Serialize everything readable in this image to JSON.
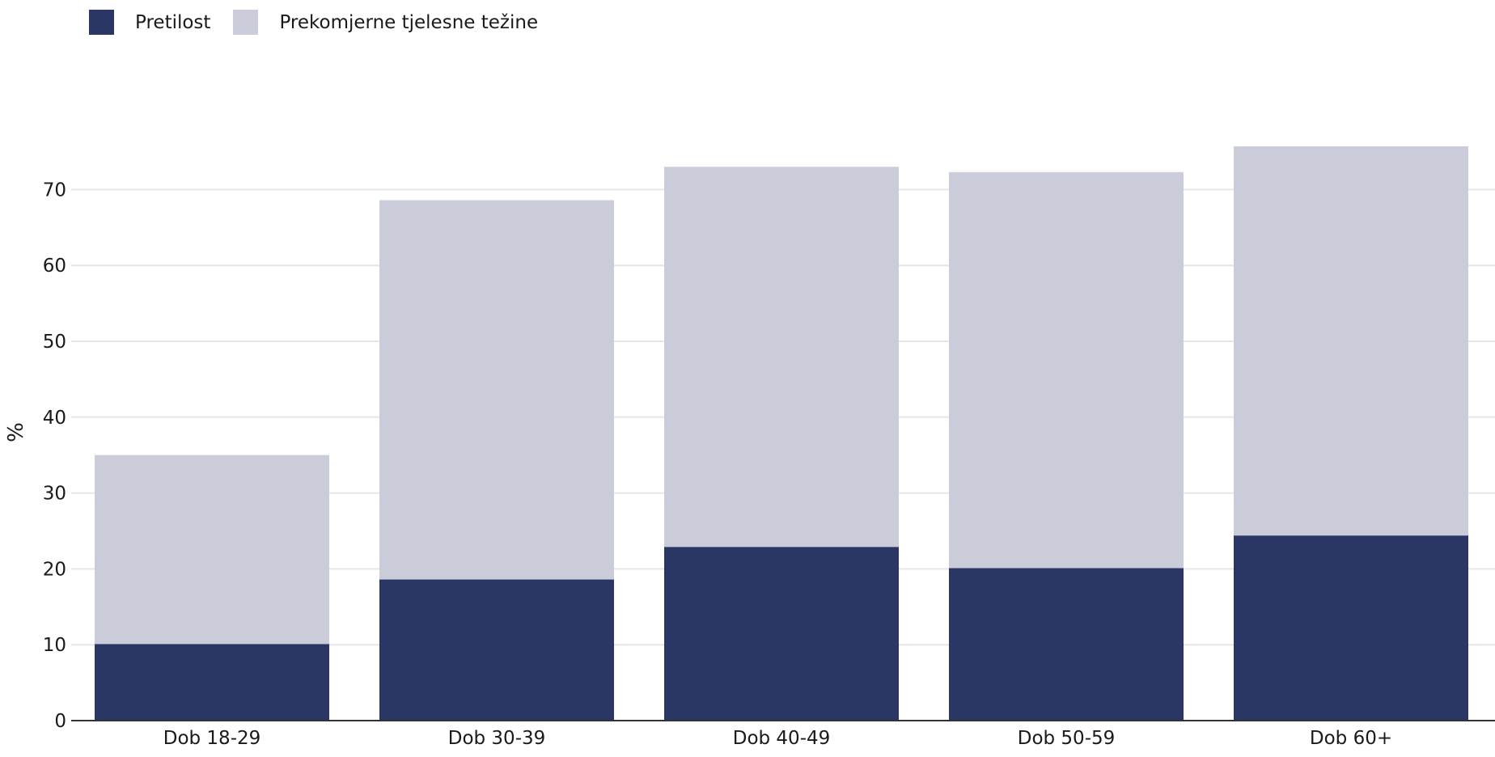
{
  "chart_data": {
    "type": "bar",
    "stacked": true,
    "categories": [
      "Dob 18-29",
      "Dob 30-39",
      "Dob 40-49",
      "Dob 50-59",
      "Dob 60+"
    ],
    "series": [
      {
        "name": "Pretilost",
        "color": "#2a3663",
        "values": [
          10.1,
          18.6,
          22.9,
          20.1,
          24.4
        ]
      },
      {
        "name": "Prekomjerne tjelesne težine",
        "color": "#cbccd9",
        "values": [
          24.9,
          50.0,
          50.1,
          52.2,
          51.3
        ]
      }
    ],
    "totals": [
      35.0,
      68.6,
      73.0,
      72.3,
      75.7
    ],
    "ylabel": "%",
    "xlabel": "",
    "ylim": [
      0,
      80
    ],
    "yticks": [
      0,
      10,
      20,
      30,
      40,
      50,
      60,
      70
    ],
    "grid": true,
    "legend_position": "top-left"
  }
}
